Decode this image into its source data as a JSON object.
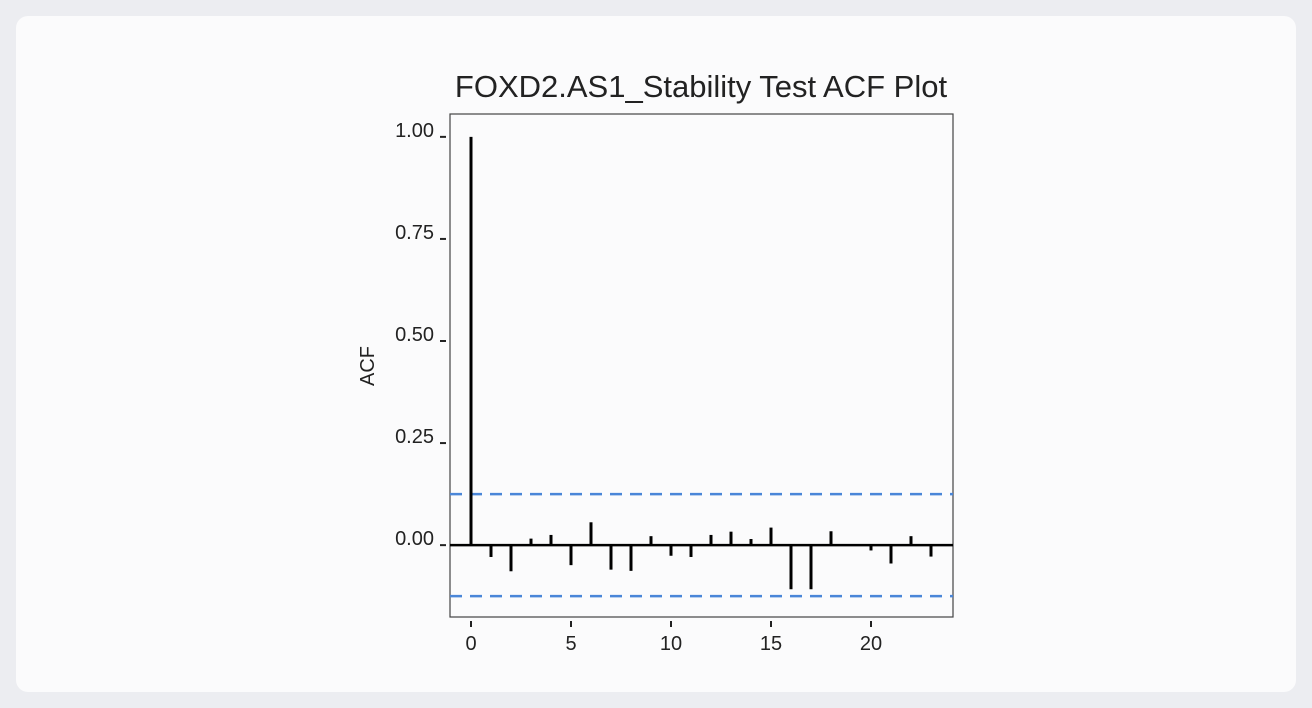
{
  "chart_data": {
    "type": "bar",
    "title": "FOXD2.AS1_Stability Test ACF Plot",
    "xlabel": "",
    "ylabel": "ACF",
    "x": [
      0,
      1,
      2,
      3,
      4,
      5,
      6,
      7,
      8,
      9,
      10,
      11,
      12,
      13,
      14,
      15,
      16,
      17,
      18,
      19,
      20,
      21,
      22,
      23
    ],
    "values": [
      1.0,
      -0.029,
      -0.064,
      0.016,
      0.025,
      -0.049,
      0.056,
      -0.06,
      -0.063,
      0.022,
      -0.026,
      -0.029,
      0.025,
      0.033,
      0.015,
      0.043,
      -0.108,
      -0.108,
      0.034,
      0.0,
      -0.013,
      -0.045,
      0.022,
      -0.028
    ],
    "confidence_bounds": [
      -0.125,
      0.125
    ],
    "xlim": [
      -1.05,
      24.1
    ],
    "ylim": [
      -0.176,
      1.056
    ],
    "xticks": [
      "0",
      "5",
      "10",
      "15",
      "20"
    ],
    "yticks": [
      "0.00",
      "0.25",
      "0.50",
      "0.75",
      "1.00"
    ],
    "grid": false,
    "colors": {
      "bars": "#000000",
      "bounds": "#4a86d8"
    }
  }
}
